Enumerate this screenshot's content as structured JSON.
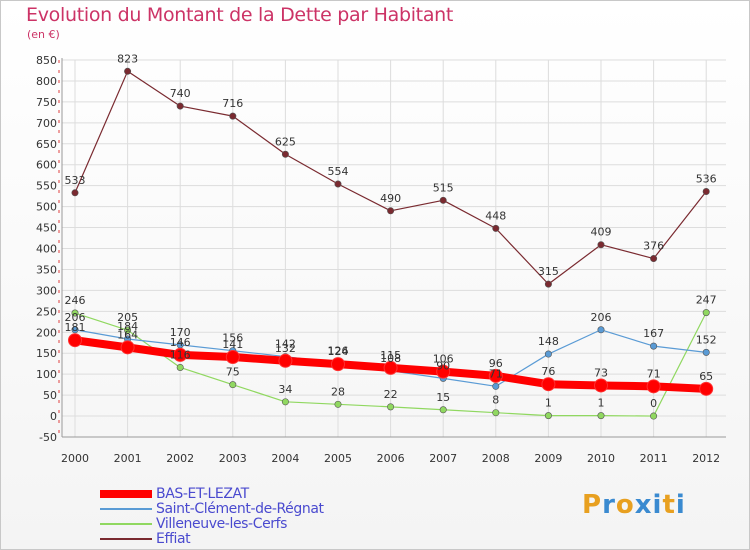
{
  "title": "Evolution du Montant de la Dette par Habitant",
  "unit_label": "(en €)",
  "logo": {
    "text": "Proxiti",
    "colors": [
      "#e8a020",
      "#3a8ad0",
      "#e8a020",
      "#3a8ad0",
      "#3a8ad0",
      "#e8a020",
      "#3a8ad0"
    ]
  },
  "chart_data": {
    "type": "line",
    "x": [
      "2000",
      "2001",
      "2002",
      "2003",
      "2004",
      "2005",
      "2006",
      "2007",
      "2008",
      "2009",
      "2010",
      "2011",
      "2012"
    ],
    "yticks": [
      -50,
      0,
      50,
      100,
      150,
      200,
      250,
      300,
      350,
      400,
      450,
      500,
      550,
      600,
      650,
      700,
      750,
      800,
      850
    ],
    "ylim": [
      -50,
      850
    ],
    "grid": true,
    "legend_placement": "bottom-left",
    "series": [
      {
        "name": "BAS-ET-LEZAT",
        "color": "#ff0000",
        "width": 8,
        "values": [
          181,
          164,
          146,
          141,
          132,
          124,
          115,
          106,
          96,
          76,
          73,
          71,
          65
        ]
      },
      {
        "name": "Saint-Clément-de-Régnat",
        "color": "#5a9bd5",
        "width": 1.2,
        "values": [
          206,
          184,
          170,
          156,
          142,
          126,
          108,
          90,
          71,
          148,
          206,
          167,
          152
        ]
      },
      {
        "name": "Villeneuve-les-Cerfs",
        "color": "#90d860",
        "width": 1.2,
        "values": [
          246,
          205,
          116,
          75,
          34,
          28,
          22,
          15,
          8,
          1,
          1,
          0,
          247
        ]
      },
      {
        "name": "Effiat",
        "color": "#7a2a30",
        "width": 1.2,
        "values": [
          533,
          823,
          740,
          716,
          625,
          554,
          490,
          515,
          448,
          315,
          409,
          376,
          536
        ]
      }
    ]
  }
}
